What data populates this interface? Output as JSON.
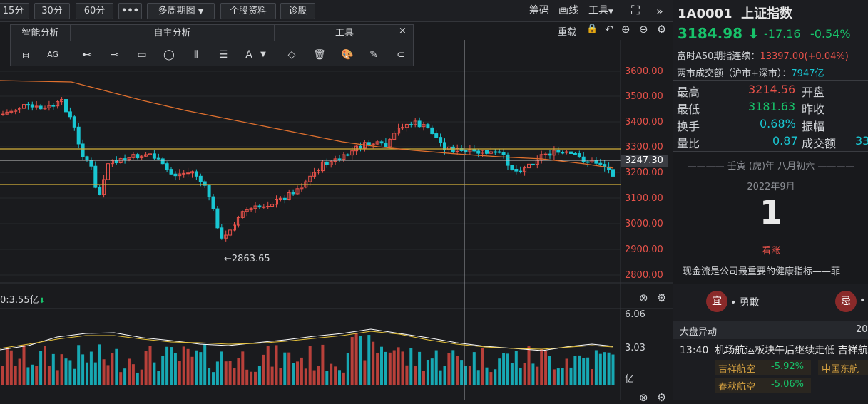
{
  "toolbar": {
    "periods": [
      "15分",
      "30分",
      "60分"
    ],
    "more": "•••",
    "multi_period": "多周期图",
    "stock_info": "个股资料",
    "diagnose": "诊股",
    "right_items": [
      "筹码",
      "画线",
      "工具"
    ],
    "second_row": "重载"
  },
  "toolpanel": {
    "smart": "智能分析",
    "self": "自主分析",
    "tools": "工具",
    "close": "×",
    "font_a": "A"
  },
  "main_chart": {
    "y_ticks": [
      "3600.00",
      "3500.00",
      "3400.00",
      "3300.00",
      "3200.00",
      "3100.00",
      "3000.00",
      "2900.00",
      "2800.00"
    ],
    "current_price_label": "3247.30",
    "low_annotation": "←2863.65"
  },
  "volume": {
    "label": "0:3.55亿",
    "arrow": "⬇",
    "ticks": [
      "6.06",
      "3.03"
    ],
    "unit": "亿"
  },
  "quote": {
    "code": "1A0001",
    "name": "上证指数",
    "price": "3184.98",
    "arrow": "⬇",
    "change": "-17.16",
    "change_pct": "-0.54%",
    "a50_label": "富时A50期指连续：",
    "a50_value": "13397.00(+0.04%)",
    "turnover_label": "两市成交额（沪市+深市）：",
    "turnover_value": "7947亿",
    "stats": [
      {
        "label": "最高",
        "value": "3214.56",
        "label2": "开盘",
        "color": "red"
      },
      {
        "label": "最低",
        "value": "3181.63",
        "label2": "昨收",
        "color": "green"
      },
      {
        "label": "换手",
        "value": "0.68%",
        "label2": "振幅",
        "color": "cyan"
      },
      {
        "label": "量比",
        "value": "0.87",
        "label2": "成交额",
        "color": "cyan",
        "extra": "33"
      }
    ]
  },
  "calendar": {
    "lunar": "壬寅 (虎)年 八月初六",
    "month": "2022年9月",
    "day": "1",
    "bull": "看涨",
    "quote": "现金流是公司最重要的健康指标——菲"
  },
  "fortune": {
    "good_char": "宜",
    "good_text": "• 勇敢",
    "bad_char": "忌",
    "bad_text": "•"
  },
  "news": {
    "header": "大盘异动",
    "header_right": "20",
    "time": "13:40",
    "headline": "机场航运板块午后继续走低 吉祥航",
    "stocks": [
      {
        "name": "吉祥航空",
        "pct": "-5.92%"
      },
      {
        "name": "中国东航",
        "pct": ""
      },
      {
        "name": "春秋航空",
        "pct": "-5.06%"
      }
    ]
  },
  "colors": {
    "up": "#e8524a",
    "down": "#19c6d2",
    "ma": "#e0702e",
    "band": "#d4b13a"
  }
}
